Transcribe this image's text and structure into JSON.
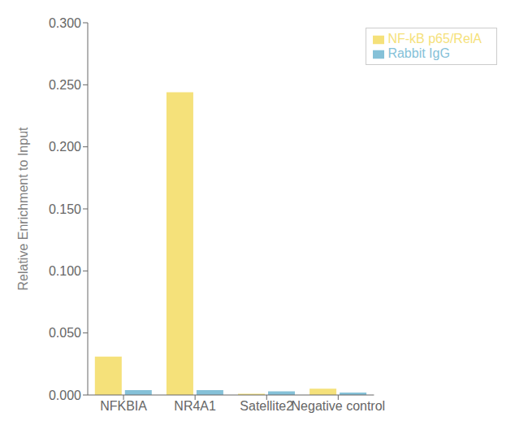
{
  "chart_data": {
    "type": "bar",
    "categories": [
      "NFKBIA",
      "NR4A1",
      "Satellite2",
      "Negative control"
    ],
    "series": [
      {
        "name": "NF-kB p65/RelA",
        "color": "#F5E17A",
        "values": [
          0.031,
          0.244,
          0.001,
          0.005
        ]
      },
      {
        "name": "Rabbit IgG",
        "color": "#85C1D8",
        "values": [
          0.004,
          0.004,
          0.003,
          0.002
        ]
      }
    ],
    "ylabel": "Relative Enrichment to Input",
    "ylim": [
      0,
      0.3
    ],
    "yticks": [
      {
        "value": 0,
        "label": "0.000"
      },
      {
        "value": 0.05,
        "label": "0.050"
      },
      {
        "value": 0.1,
        "label": "0.100"
      },
      {
        "value": 0.15,
        "label": "0.150"
      },
      {
        "value": 0.2,
        "label": "0.200"
      },
      {
        "value": 0.25,
        "label": "0.250"
      },
      {
        "value": 0.3,
        "label": "0.300"
      }
    ],
    "grid": false,
    "legend": "upper right"
  }
}
